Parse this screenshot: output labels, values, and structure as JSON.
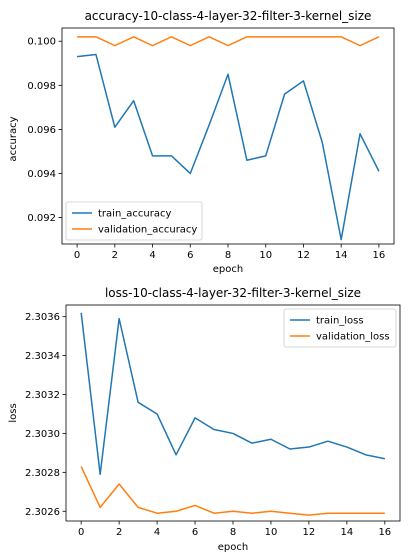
{
  "chart_data": [
    {
      "type": "line",
      "title": "accuracy-10-class-4-layer-32-filter-3-kernel_size",
      "xlabel": "epoch",
      "ylabel": "accuracy",
      "xlim": [
        -0.8,
        16.8
      ],
      "ylim": [
        0.0908,
        0.1006
      ],
      "xticks": [
        0,
        2,
        4,
        6,
        8,
        10,
        12,
        14,
        16
      ],
      "xtick_labels": [
        "0",
        "2",
        "4",
        "6",
        "8",
        "10",
        "12",
        "14",
        "16"
      ],
      "yticks": [
        0.092,
        0.094,
        0.096,
        0.098,
        0.1
      ],
      "ytick_labels": [
        "0.092",
        "0.094",
        "0.096",
        "0.098",
        "0.100"
      ],
      "legend": "lower-left",
      "grid": false,
      "x": [
        0,
        1,
        2,
        3,
        4,
        5,
        6,
        7,
        8,
        9,
        10,
        11,
        12,
        13,
        14,
        15,
        16
      ],
      "series": [
        {
          "name": "train_accuracy",
          "color": "#1f77b4",
          "values": [
            0.0993,
            0.0994,
            0.0961,
            0.0973,
            0.0948,
            0.0948,
            0.094,
            0.0962,
            0.0985,
            0.0946,
            0.0948,
            0.0976,
            0.0982,
            0.0954,
            0.091,
            0.0958,
            0.0941
          ]
        },
        {
          "name": "validation_accuracy",
          "color": "#ff7f0e",
          "values": [
            0.1002,
            0.1002,
            0.0998,
            0.1002,
            0.0998,
            0.1002,
            0.0998,
            0.1002,
            0.0998,
            0.1002,
            0.1002,
            0.1002,
            0.1002,
            0.1002,
            0.1002,
            0.0998,
            0.1002
          ]
        }
      ]
    },
    {
      "type": "line",
      "title": "loss-10-class-4-layer-32-filter-3-kernel_size",
      "xlabel": "epoch",
      "ylabel": "loss",
      "xlim": [
        -0.8,
        16.8
      ],
      "ylim": [
        2.30255,
        2.30366
      ],
      "xticks": [
        0,
        2,
        4,
        6,
        8,
        10,
        12,
        14,
        16
      ],
      "xtick_labels": [
        "0",
        "2",
        "4",
        "6",
        "8",
        "10",
        "12",
        "14",
        "16"
      ],
      "yticks": [
        2.3026,
        2.3028,
        2.303,
        2.3032,
        2.3034,
        2.3036
      ],
      "ytick_labels": [
        "2.3026",
        "2.3028",
        "2.3030",
        "2.3032",
        "2.3034",
        "2.3036"
      ],
      "legend": "upper-right",
      "grid": false,
      "x": [
        0,
        1,
        2,
        3,
        4,
        5,
        6,
        7,
        8,
        9,
        10,
        11,
        12,
        13,
        14,
        15,
        16
      ],
      "series": [
        {
          "name": "train_loss",
          "color": "#1f77b4",
          "values": [
            2.30362,
            2.30279,
            2.30359,
            2.30316,
            2.3031,
            2.30289,
            2.30308,
            2.30302,
            2.303,
            2.30295,
            2.30297,
            2.30292,
            2.30293,
            2.30296,
            2.30293,
            2.30289,
            2.30287
          ]
        },
        {
          "name": "validation_loss",
          "color": "#ff7f0e",
          "values": [
            2.30283,
            2.30262,
            2.30274,
            2.30262,
            2.30259,
            2.3026,
            2.30263,
            2.30259,
            2.3026,
            2.30259,
            2.3026,
            2.30259,
            2.30258,
            2.30259,
            2.30259,
            2.30259,
            2.30259
          ]
        }
      ]
    }
  ]
}
